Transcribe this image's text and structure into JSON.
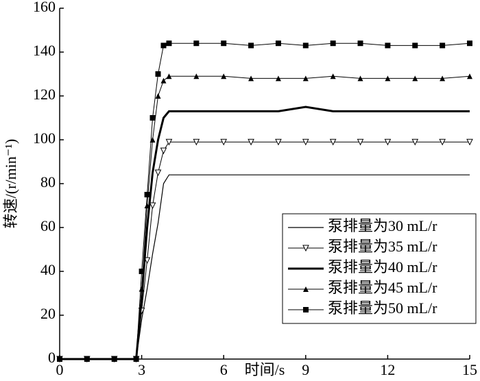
{
  "chart_data": {
    "type": "line",
    "x_label": "时间/s",
    "y_label": "转速/(r/min⁻¹)",
    "x": [
      0,
      1,
      2,
      2.8,
      3,
      3.2,
      3.4,
      3.6,
      3.8,
      4,
      5,
      6,
      7,
      8,
      9,
      10,
      11,
      12,
      13,
      14,
      15
    ],
    "series": [
      {
        "name": "泵排量为30 mL/r",
        "color": "#000000",
        "line_width": 1.2,
        "marker": "none",
        "values": [
          0,
          0,
          0,
          0,
          18,
          32,
          48,
          62,
          80,
          84,
          84,
          84,
          84,
          84,
          84,
          84,
          84,
          84,
          84,
          84,
          84
        ]
      },
      {
        "name": "泵排量为35 mL/r",
        "color": "#000000",
        "line_width": 1,
        "marker": "triangle-down-open",
        "values": [
          0,
          0,
          0,
          0,
          22,
          45,
          70,
          85,
          95,
          99,
          99,
          99,
          99,
          99,
          99,
          99,
          99,
          99,
          99,
          99,
          99
        ]
      },
      {
        "name": "泵排量为40 mL/r",
        "color": "#000000",
        "line_width": 3,
        "marker": "none",
        "values": [
          0,
          0,
          0,
          0,
          28,
          60,
          85,
          100,
          110,
          113,
          113,
          113,
          113,
          113,
          115,
          113,
          113,
          113,
          113,
          113,
          113
        ]
      },
      {
        "name": "泵排量为45 mL/r",
        "color": "#000000",
        "line_width": 1,
        "marker": "triangle-up",
        "values": [
          0,
          0,
          0,
          0,
          32,
          70,
          100,
          120,
          127,
          129,
          129,
          129,
          128,
          128,
          128,
          129,
          128,
          128,
          128,
          128,
          129
        ]
      },
      {
        "name": "泵排量为50 mL/r",
        "color": "#000000",
        "line_width": 1,
        "marker": "square",
        "values": [
          0,
          0,
          0,
          0,
          40,
          75,
          110,
          130,
          143,
          144,
          144,
          144,
          143,
          144,
          143,
          144,
          144,
          143,
          143,
          143,
          144
        ]
      }
    ],
    "xlim": [
      0,
      15
    ],
    "xticks": [
      0,
      3,
      6,
      9,
      12,
      15
    ],
    "ylim": [
      0,
      160
    ],
    "yticks": [
      0,
      20,
      40,
      60,
      80,
      100,
      120,
      140,
      160
    ],
    "legend": "lower right",
    "grid": false
  }
}
